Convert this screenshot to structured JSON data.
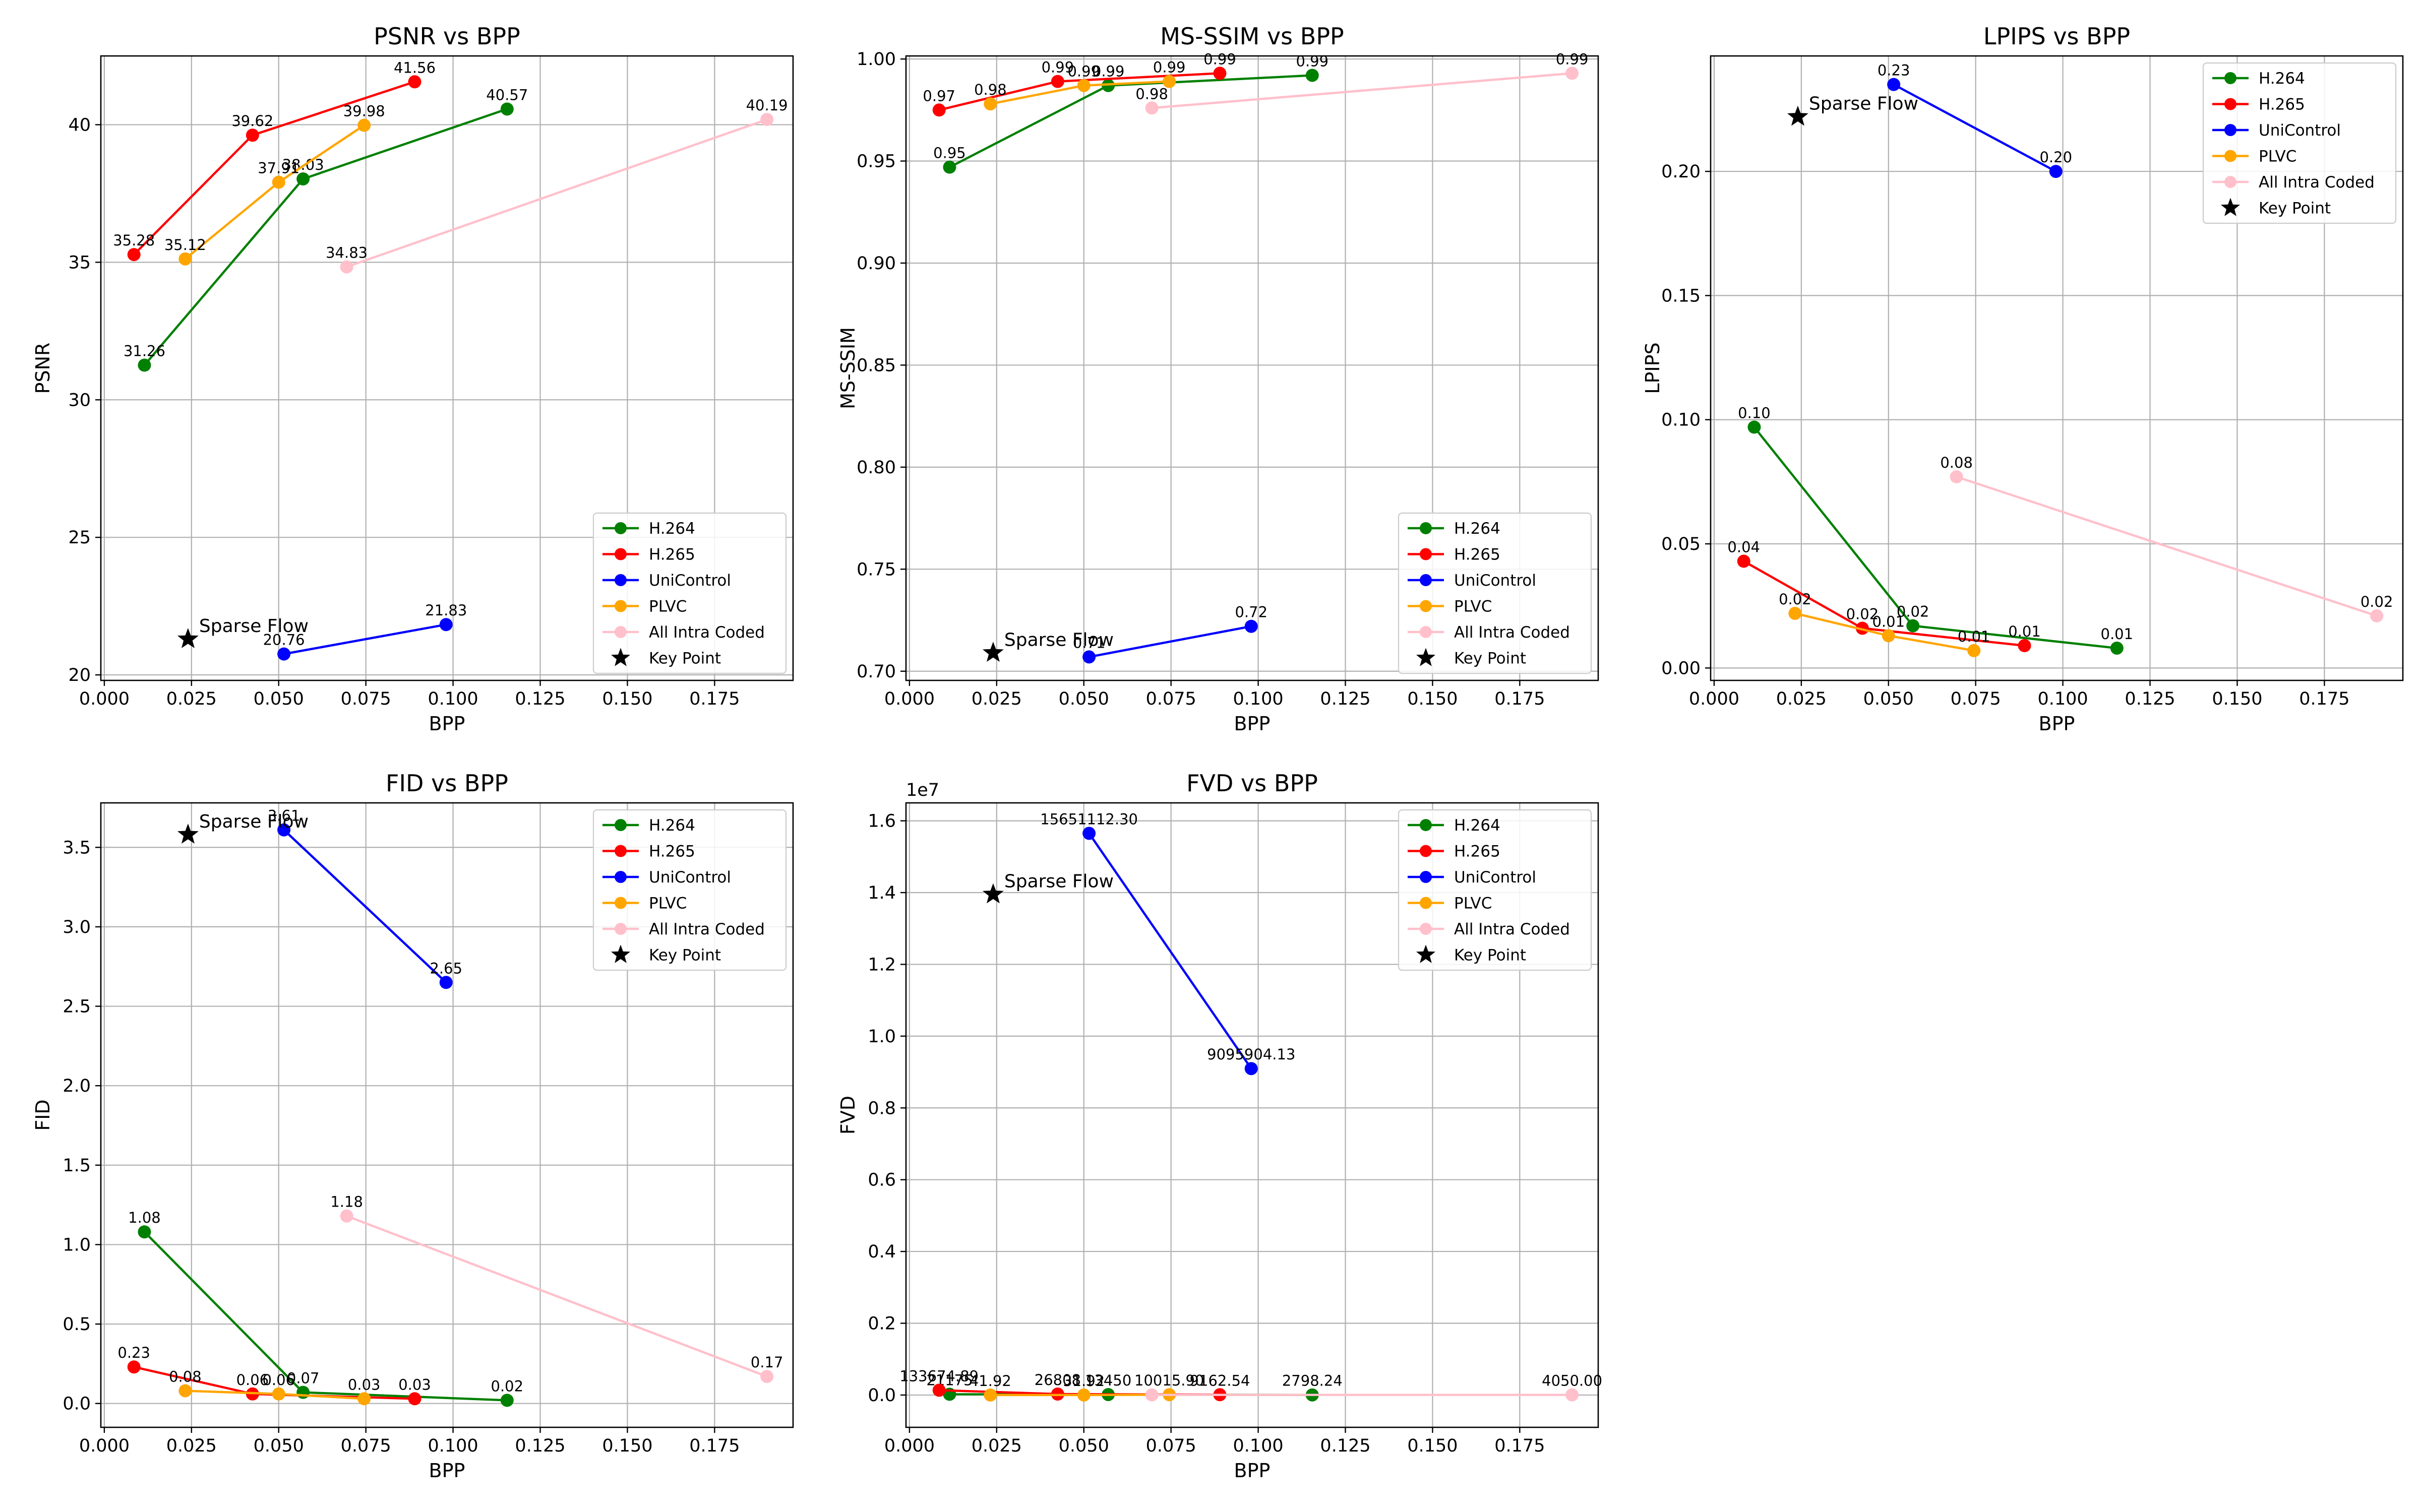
{
  "colors": {
    "H.264": "#008000",
    "H.265": "#ff0000",
    "UniControl": "#0000ff",
    "PLVC": "#ffa500",
    "All Intra Coded": "#ffc0cb",
    "Key Point": "#000000"
  },
  "legend": [
    "H.264",
    "H.265",
    "UniControl",
    "PLVC",
    "All Intra Coded",
    "Key Point"
  ],
  "chart_data": [
    {
      "type": "line",
      "title": "PSNR vs BPP",
      "xlabel": "BPP",
      "ylabel": "PSNR",
      "xlim": [
        -0.001,
        0.1975
      ],
      "ylim": [
        19.8,
        42.5
      ],
      "xticks": [
        "0.000",
        "0.025",
        "0.050",
        "0.075",
        "0.100",
        "0.125",
        "0.150",
        "0.175"
      ],
      "xtick_values": [
        0,
        0.025,
        0.05,
        0.075,
        0.1,
        0.125,
        0.15,
        0.175
      ],
      "yticks": [
        "20",
        "25",
        "30",
        "35",
        "40"
      ],
      "ytick_values": [
        20,
        25,
        30,
        35,
        40
      ],
      "grid": true,
      "legend_position": "lower right",
      "offset_text": "",
      "series": [
        {
          "name": "H.264",
          "x": [
            0.0115,
            0.057,
            0.1155
          ],
          "y": [
            31.26,
            38.03,
            40.57
          ],
          "labels": [
            "31.26",
            "38.03",
            "40.57"
          ]
        },
        {
          "name": "H.265",
          "x": [
            0.0085,
            0.0425,
            0.089
          ],
          "y": [
            35.28,
            39.62,
            41.56
          ],
          "labels": [
            "35.28",
            "39.62",
            "41.56"
          ]
        },
        {
          "name": "UniControl",
          "x": [
            0.0515,
            0.098
          ],
          "y": [
            20.76,
            21.83
          ],
          "labels": [
            "20.76",
            "21.83"
          ]
        },
        {
          "name": "PLVC",
          "x": [
            0.0232,
            0.05,
            0.0745
          ],
          "y": [
            35.12,
            37.91,
            39.98
          ],
          "labels": [
            "35.12",
            "37.91",
            "39.98"
          ]
        },
        {
          "name": "All Intra Coded",
          "x": [
            0.0695,
            0.19
          ],
          "y": [
            34.83,
            40.19
          ],
          "labels": [
            "34.83",
            "40.19"
          ]
        }
      ],
      "key_point": {
        "name": "Key Point",
        "x": 0.024,
        "y": 21.3,
        "label": "Sparse Flow"
      }
    },
    {
      "type": "line",
      "title": "MS-SSIM vs BPP",
      "xlabel": "BPP",
      "ylabel": "MS-SSIM",
      "xlim": [
        -0.001,
        0.1975
      ],
      "ylim": [
        0.6955,
        1.0015
      ],
      "xticks": [
        "0.000",
        "0.025",
        "0.050",
        "0.075",
        "0.100",
        "0.125",
        "0.150",
        "0.175"
      ],
      "xtick_values": [
        0,
        0.025,
        0.05,
        0.075,
        0.1,
        0.125,
        0.15,
        0.175
      ],
      "yticks": [
        "0.70",
        "0.75",
        "0.80",
        "0.85",
        "0.90",
        "0.95",
        "1.00"
      ],
      "ytick_values": [
        0.7,
        0.75,
        0.8,
        0.85,
        0.9,
        0.95,
        1.0
      ],
      "grid": true,
      "legend_position": "lower right",
      "offset_text": "",
      "series": [
        {
          "name": "H.264",
          "x": [
            0.0115,
            0.057,
            0.1155
          ],
          "y": [
            0.947,
            0.987,
            0.992
          ],
          "labels": [
            "0.95",
            "0.99",
            "0.99"
          ]
        },
        {
          "name": "H.265",
          "x": [
            0.0085,
            0.0425,
            0.089
          ],
          "y": [
            0.975,
            0.989,
            0.993
          ],
          "labels": [
            "0.97",
            "0.99",
            "0.99"
          ]
        },
        {
          "name": "UniControl",
          "x": [
            0.0515,
            0.098
          ],
          "y": [
            0.707,
            0.722
          ],
          "labels": [
            "0.71",
            "0.72"
          ]
        },
        {
          "name": "PLVC",
          "x": [
            0.0232,
            0.05,
            0.0745
          ],
          "y": [
            0.978,
            0.987,
            0.989
          ],
          "labels": [
            "0.98",
            "0.99",
            "0.99"
          ]
        },
        {
          "name": "All Intra Coded",
          "x": [
            0.0695,
            0.19
          ],
          "y": [
            0.976,
            0.993
          ],
          "labels": [
            "0.98",
            "0.99"
          ]
        }
      ],
      "key_point": {
        "name": "Key Point",
        "x": 0.024,
        "y": 0.709,
        "label": "Sparse Flow"
      }
    },
    {
      "type": "line",
      "title": "LPIPS vs BPP",
      "xlabel": "BPP",
      "ylabel": "LPIPS",
      "xlim": [
        -0.001,
        0.1975
      ],
      "ylim": [
        -0.005,
        0.2465
      ],
      "xticks": [
        "0.000",
        "0.025",
        "0.050",
        "0.075",
        "0.100",
        "0.125",
        "0.150",
        "0.175"
      ],
      "xtick_values": [
        0,
        0.025,
        0.05,
        0.075,
        0.1,
        0.125,
        0.15,
        0.175
      ],
      "yticks": [
        "0.00",
        "0.05",
        "0.10",
        "0.15",
        "0.20"
      ],
      "ytick_values": [
        0,
        0.05,
        0.1,
        0.15,
        0.2
      ],
      "grid": true,
      "legend_position": "upper right",
      "offset_text": "",
      "series": [
        {
          "name": "H.264",
          "x": [
            0.0115,
            0.057,
            0.1155
          ],
          "y": [
            0.097,
            0.017,
            0.008
          ],
          "labels": [
            "0.10",
            "0.02",
            "0.01"
          ]
        },
        {
          "name": "H.265",
          "x": [
            0.0085,
            0.0425,
            0.089
          ],
          "y": [
            0.043,
            0.016,
            0.009
          ],
          "labels": [
            "0.04",
            "0.02",
            "0.01"
          ]
        },
        {
          "name": "UniControl",
          "x": [
            0.0515,
            0.098
          ],
          "y": [
            0.235,
            0.2
          ],
          "labels": [
            "0.23",
            "0.20"
          ]
        },
        {
          "name": "PLVC",
          "x": [
            0.0232,
            0.05,
            0.0745
          ],
          "y": [
            0.022,
            0.013,
            0.007
          ],
          "labels": [
            "0.02",
            "0.01",
            "0.01"
          ]
        },
        {
          "name": "All Intra Coded",
          "x": [
            0.0695,
            0.19
          ],
          "y": [
            0.077,
            0.021
          ],
          "labels": [
            "0.08",
            "0.02"
          ]
        }
      ],
      "key_point": {
        "name": "Key Point",
        "x": 0.024,
        "y": 0.222,
        "label": "Sparse Flow"
      }
    },
    {
      "type": "line",
      "title": "FID vs BPP",
      "xlabel": "BPP",
      "ylabel": "FID",
      "xlim": [
        -0.001,
        0.1975
      ],
      "ylim": [
        -0.15,
        3.78
      ],
      "xticks": [
        "0.000",
        "0.025",
        "0.050",
        "0.075",
        "0.100",
        "0.125",
        "0.150",
        "0.175"
      ],
      "xtick_values": [
        0,
        0.025,
        0.05,
        0.075,
        0.1,
        0.125,
        0.15,
        0.175
      ],
      "yticks": [
        "0.0",
        "0.5",
        "1.0",
        "1.5",
        "2.0",
        "2.5",
        "3.0",
        "3.5"
      ],
      "ytick_values": [
        0,
        0.5,
        1,
        1.5,
        2,
        2.5,
        3,
        3.5
      ],
      "grid": true,
      "legend_position": "upper right",
      "offset_text": "",
      "series": [
        {
          "name": "H.264",
          "x": [
            0.0115,
            0.057,
            0.1155
          ],
          "y": [
            1.08,
            0.07,
            0.02
          ],
          "labels": [
            "1.08",
            "0.07",
            "0.02"
          ]
        },
        {
          "name": "H.265",
          "x": [
            0.0085,
            0.0425,
            0.089
          ],
          "y": [
            0.23,
            0.06,
            0.03
          ],
          "labels": [
            "0.23",
            "0.06",
            "0.03"
          ]
        },
        {
          "name": "UniControl",
          "x": [
            0.0515,
            0.098
          ],
          "y": [
            3.61,
            2.65
          ],
          "labels": [
            "3.61",
            "2.65"
          ]
        },
        {
          "name": "PLVC",
          "x": [
            0.0232,
            0.05,
            0.0745
          ],
          "y": [
            0.08,
            0.06,
            0.03
          ],
          "labels": [
            "0.08",
            "0.06",
            "0.03"
          ]
        },
        {
          "name": "All Intra Coded",
          "x": [
            0.0695,
            0.19
          ],
          "y": [
            1.18,
            0.17
          ],
          "labels": [
            "1.18",
            "0.17"
          ]
        }
      ],
      "key_point": {
        "name": "Key Point",
        "x": 0.024,
        "y": 3.58,
        "label": "Sparse Flow"
      }
    },
    {
      "type": "line",
      "title": "FVD vs BPP",
      "xlabel": "BPP",
      "ylabel": "FVD",
      "xlim": [
        -0.001,
        0.1975
      ],
      "ylim": [
        -900000,
        16500000
      ],
      "xticks": [
        "0.000",
        "0.025",
        "0.050",
        "0.075",
        "0.100",
        "0.125",
        "0.150",
        "0.175"
      ],
      "xtick_values": [
        0,
        0.025,
        0.05,
        0.075,
        0.1,
        0.125,
        0.15,
        0.175
      ],
      "yticks": [
        "0.0",
        "0.2",
        "0.4",
        "0.6",
        "0.8",
        "1.0",
        "1.2",
        "1.4",
        "1.6"
      ],
      "ytick_values": [
        0,
        2000000,
        4000000,
        6000000,
        8000000,
        10000000,
        12000000,
        14000000,
        16000000
      ],
      "grid": true,
      "legend_position": "upper right",
      "offset_text": "1e7",
      "series": [
        {
          "name": "H.264",
          "x": [
            0.0115,
            0.057,
            0.1155
          ],
          "y": [
            21175,
            13450,
            2798.24
          ],
          "labels": [
            "21175",
            "13450",
            "2798.24"
          ]
        },
        {
          "name": "H.265",
          "x": [
            0.0085,
            0.0425,
            0.089
          ],
          "y": [
            133674.89,
            26808,
            9162.54
          ],
          "labels": [
            "133674.89",
            "26808",
            "9162.54"
          ]
        },
        {
          "name": "UniControl",
          "x": [
            0.0515,
            0.098
          ],
          "y": [
            15651112.3,
            9095904.13
          ],
          "labels": [
            "15651112.30",
            "9095904.13"
          ]
        },
        {
          "name": "PLVC",
          "x": [
            0.0232,
            0.05,
            0.0745
          ],
          "y": [
            41.92,
            31.92,
            10015.9
          ],
          "labels": [
            "41.92",
            "31.92",
            "10015.90"
          ]
        },
        {
          "name": "All Intra Coded",
          "x": [
            0.0695,
            0.19
          ],
          "y": [
            4050.0,
            4050.0
          ],
          "labels": [
            "",
            "4050.00"
          ]
        }
      ],
      "key_point": {
        "name": "Key Point",
        "x": 0.024,
        "y": 13950000,
        "label": "Sparse Flow"
      }
    }
  ]
}
